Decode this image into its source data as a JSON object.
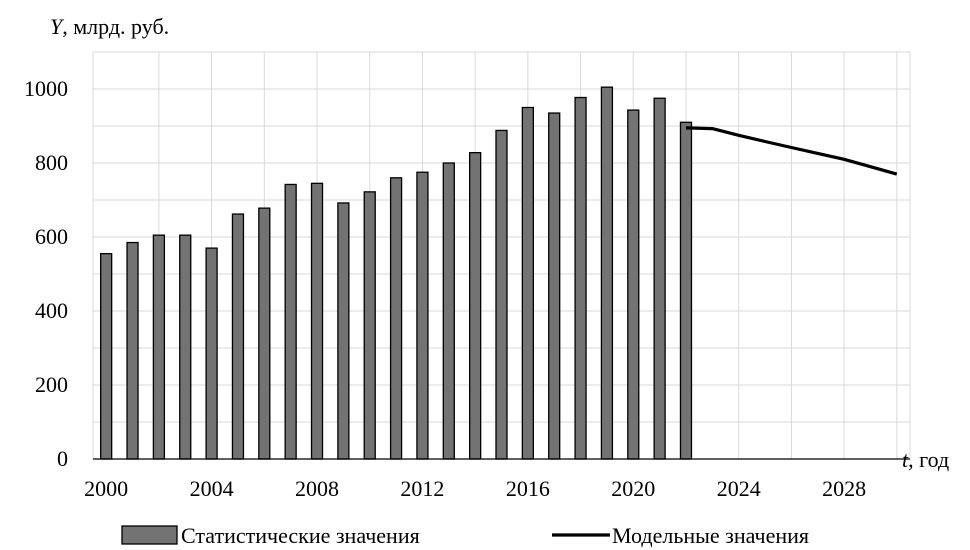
{
  "chart_data": {
    "type": "bar",
    "ylabel_var": "Y",
    "ylabel_unit": ", млрд. руб.",
    "xlabel_var": "t",
    "xlabel_unit": ", год",
    "ylim": [
      0,
      1100
    ],
    "yticks": [
      0,
      200,
      400,
      600,
      800,
      1000
    ],
    "xlim": [
      1999.5,
      2030.5
    ],
    "xticks": [
      2000,
      2004,
      2008,
      2012,
      2016,
      2020,
      2024,
      2028
    ],
    "grid": true,
    "legend_position": "bottom",
    "series": [
      {
        "name": "Статистические значения",
        "type": "bar",
        "color": "#737373",
        "x": [
          2000,
          2001,
          2002,
          2003,
          2004,
          2005,
          2006,
          2007,
          2008,
          2009,
          2010,
          2011,
          2012,
          2013,
          2014,
          2015,
          2016,
          2017,
          2018,
          2019,
          2020,
          2021,
          2022
        ],
        "values": [
          555,
          585,
          605,
          605,
          570,
          662,
          678,
          742,
          745,
          692,
          722,
          760,
          775,
          800,
          828,
          888,
          950,
          935,
          977,
          1005,
          943,
          975,
          910
        ]
      },
      {
        "name": "Модельные значения",
        "type": "line",
        "color": "#000000",
        "x": [
          2022,
          2023,
          2024,
          2025,
          2026,
          2027,
          2028,
          2029,
          2030
        ],
        "values": [
          895,
          893,
          875,
          858,
          842,
          826,
          810,
          790,
          770
        ]
      }
    ]
  }
}
